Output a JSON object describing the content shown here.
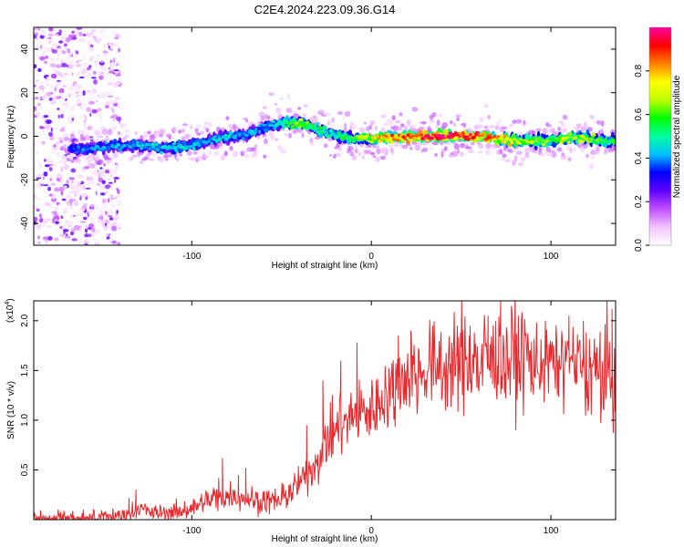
{
  "title": "C2E4.2024.223.09.36.G14",
  "chart_data": [
    {
      "type": "heatmap",
      "xlabel": "Height of straight line (km)",
      "ylabel": "Frequency (Hz)",
      "xlim": [
        -188,
        136
      ],
      "ylim": [
        -50,
        50
      ],
      "x_ticks": [
        -100,
        0,
        100
      ],
      "y_ticks": [
        -40,
        -20,
        0,
        20,
        40
      ],
      "colorbar": {
        "label": "Normalized spectral amplitude",
        "ticks": [
          0.0,
          0.2,
          0.4,
          0.6,
          0.8
        ],
        "range": [
          0,
          1
        ],
        "colors": [
          "#ffffff",
          "#f2c4ff",
          "#c050ff",
          "#6000ff",
          "#0000ff",
          "#00c0ff",
          "#00ffa0",
          "#00ff00",
          "#c0ff00",
          "#ffff00",
          "#ff8000",
          "#ff0000",
          "#ff00a0"
        ]
      },
      "ridge": [
        {
          "x": -170,
          "f": -6,
          "amp": 0.35
        },
        {
          "x": -160,
          "f": -6,
          "amp": 0.4
        },
        {
          "x": -150,
          "f": -5,
          "amp": 0.4
        },
        {
          "x": -140,
          "f": -4,
          "amp": 0.42
        },
        {
          "x": -130,
          "f": -4,
          "amp": 0.45
        },
        {
          "x": -120,
          "f": -5,
          "amp": 0.45
        },
        {
          "x": -110,
          "f": -5,
          "amp": 0.45
        },
        {
          "x": -100,
          "f": -4,
          "amp": 0.45
        },
        {
          "x": -90,
          "f": -2,
          "amp": 0.42
        },
        {
          "x": -80,
          "f": 0,
          "amp": 0.45
        },
        {
          "x": -70,
          "f": 1,
          "amp": 0.42
        },
        {
          "x": -60,
          "f": 4,
          "amp": 0.38
        },
        {
          "x": -50,
          "f": 6,
          "amp": 0.5
        },
        {
          "x": -40,
          "f": 6,
          "amp": 0.7
        },
        {
          "x": -35,
          "f": 5,
          "amp": 0.6
        },
        {
          "x": -30,
          "f": 3,
          "amp": 0.55
        },
        {
          "x": -20,
          "f": 1,
          "amp": 0.5
        },
        {
          "x": -10,
          "f": -1,
          "amp": 0.6
        },
        {
          "x": 0,
          "f": -1,
          "amp": 0.7
        },
        {
          "x": 10,
          "f": 0,
          "amp": 0.85
        },
        {
          "x": 20,
          "f": 0,
          "amp": 0.9
        },
        {
          "x": 30,
          "f": 0,
          "amp": 0.92
        },
        {
          "x": 40,
          "f": 0,
          "amp": 0.95
        },
        {
          "x": 50,
          "f": 0,
          "amp": 0.95
        },
        {
          "x": 60,
          "f": 0,
          "amp": 0.92
        },
        {
          "x": 70,
          "f": -1,
          "amp": 0.8
        },
        {
          "x": 80,
          "f": -2,
          "amp": 0.7
        },
        {
          "x": 90,
          "f": -2,
          "amp": 0.65
        },
        {
          "x": 100,
          "f": -2,
          "amp": 0.6
        },
        {
          "x": 110,
          "f": -1,
          "amp": 0.7
        },
        {
          "x": 120,
          "f": -1,
          "amp": 0.65
        },
        {
          "x": 130,
          "f": -2,
          "amp": 0.55
        }
      ],
      "noise_region": {
        "x_range": [
          -188,
          -140
        ],
        "f_range": [
          -50,
          50
        ]
      }
    },
    {
      "type": "line",
      "xlabel": "Height of straight line (km)",
      "ylabel": "SNR (10 * v/v)",
      "exponent_label": "(x10",
      "exponent_power": "4",
      "exponent_close": ")",
      "xlim": [
        -188,
        136
      ],
      "ylim": [
        0,
        2.2
      ],
      "x_ticks": [
        -100,
        0,
        100
      ],
      "y_ticks": [
        0.5,
        1.0,
        1.5,
        2.0
      ],
      "color": "#e8282c",
      "trend": [
        {
          "x": -188,
          "y": 0.01
        },
        {
          "x": -150,
          "y": 0.02
        },
        {
          "x": -135,
          "y": 0.05
        },
        {
          "x": -130,
          "y": 0.12
        },
        {
          "x": -120,
          "y": 0.06
        },
        {
          "x": -110,
          "y": 0.07
        },
        {
          "x": -100,
          "y": 0.12
        },
        {
          "x": -90,
          "y": 0.2
        },
        {
          "x": -80,
          "y": 0.25
        },
        {
          "x": -70,
          "y": 0.22
        },
        {
          "x": -60,
          "y": 0.18
        },
        {
          "x": -50,
          "y": 0.2
        },
        {
          "x": -40,
          "y": 0.35
        },
        {
          "x": -30,
          "y": 0.6
        },
        {
          "x": -20,
          "y": 0.9
        },
        {
          "x": -10,
          "y": 1.05
        },
        {
          "x": 0,
          "y": 1.1
        },
        {
          "x": 10,
          "y": 1.3
        },
        {
          "x": 20,
          "y": 1.45
        },
        {
          "x": 30,
          "y": 1.5
        },
        {
          "x": 40,
          "y": 1.55
        },
        {
          "x": 50,
          "y": 1.55
        },
        {
          "x": 60,
          "y": 1.55
        },
        {
          "x": 70,
          "y": 1.6
        },
        {
          "x": 80,
          "y": 1.6
        },
        {
          "x": 90,
          "y": 1.58
        },
        {
          "x": 100,
          "y": 1.55
        },
        {
          "x": 110,
          "y": 1.55
        },
        {
          "x": 120,
          "y": 1.5
        },
        {
          "x": 130,
          "y": 1.45
        },
        {
          "x": 136,
          "y": 1.3
        }
      ],
      "peaks": [
        {
          "x": -135,
          "y": 0.22
        },
        {
          "x": -131,
          "y": 0.3
        },
        {
          "x": -85,
          "y": 0.42
        },
        {
          "x": -83,
          "y": 0.62
        },
        {
          "x": -74,
          "y": 0.45
        },
        {
          "x": -70,
          "y": 0.52
        },
        {
          "x": -36,
          "y": 0.95
        },
        {
          "x": -27,
          "y": 1.4
        },
        {
          "x": -17,
          "y": 1.6
        },
        {
          "x": -8,
          "y": 1.78
        },
        {
          "x": 15,
          "y": 1.85
        },
        {
          "x": 22,
          "y": 1.9
        },
        {
          "x": 55,
          "y": 1.95
        },
        {
          "x": 65,
          "y": 2.05
        },
        {
          "x": 72,
          "y": 2.2
        },
        {
          "x": 78,
          "y": 2.15
        },
        {
          "x": 110,
          "y": 2.05
        },
        {
          "x": 118,
          "y": 2.0
        },
        {
          "x": 134,
          "y": 2.12
        }
      ]
    }
  ]
}
